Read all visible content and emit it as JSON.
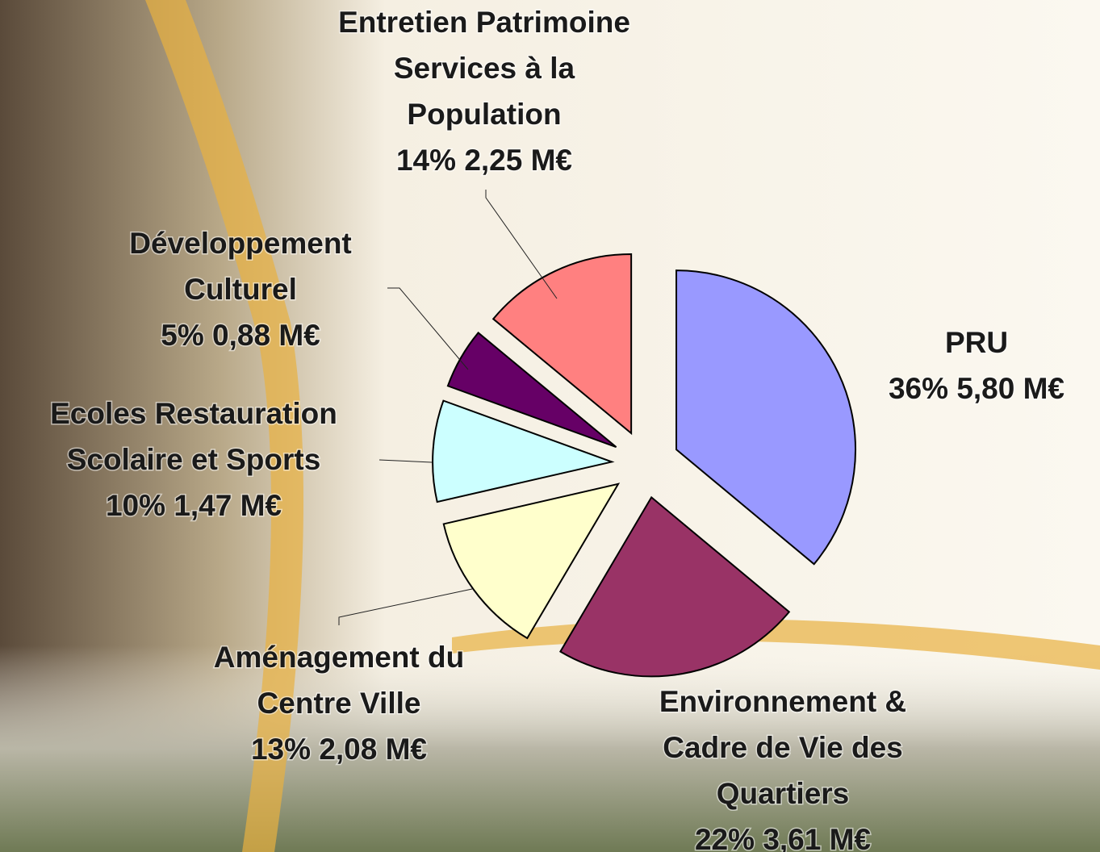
{
  "chart_data": {
    "type": "pie",
    "categories": [
      "PRU",
      "Environnement &\nCadre de Vie des\nQuartiers",
      "Aménagement du\nCentre Ville",
      "Ecoles Restauration\nScolaire et Sports",
      "Développement\nCulturel",
      "Entretien Patrimoine\nServices à la\nPopulation"
    ],
    "values": [
      5.8,
      3.61,
      2.08,
      1.47,
      0.88,
      2.25
    ],
    "value_labels": [
      "36% 5,80 M€",
      "22% 3,61 M€",
      "13% 2,08 M€",
      "10% 1,47 M€",
      "5% 0,88 M€",
      "14% 2,25 M€"
    ],
    "colors": [
      "#9999ff",
      "#993366",
      "#ffffcc",
      "#ccffff",
      "#660066",
      "#ff8080"
    ]
  }
}
